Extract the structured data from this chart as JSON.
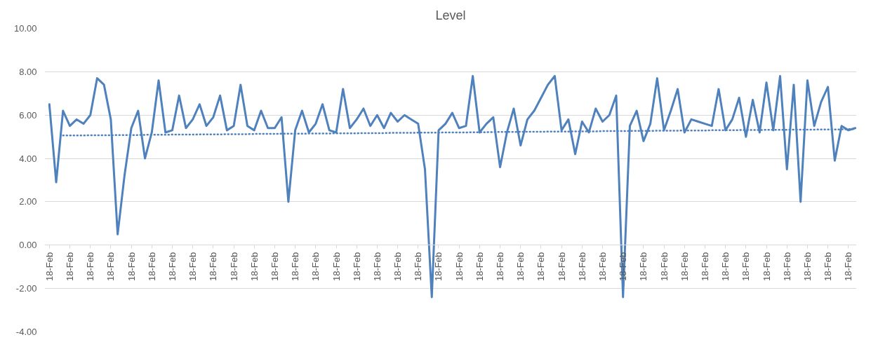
{
  "chart_data": {
    "type": "line",
    "title": "Level",
    "categories": [
      "18-Feb",
      null,
      null,
      "18-Feb",
      null,
      null,
      "18-Feb",
      null,
      null,
      "18-Feb",
      null,
      null,
      "18-Feb",
      null,
      null,
      "18-Feb",
      null,
      null,
      "18-Feb",
      null,
      null,
      "18-Feb",
      null,
      null,
      "18-Feb",
      null,
      null,
      "18-Feb",
      null,
      null,
      "18-Feb",
      null,
      null,
      "18-Feb",
      null,
      null,
      "18-Feb",
      null,
      null,
      "18-Feb",
      null,
      null,
      "18-Feb",
      null,
      null,
      "18-Feb",
      null,
      null,
      "18-Feb",
      null,
      null,
      "18-Feb",
      null,
      null,
      "18-Feb",
      null,
      null,
      "18-Feb",
      null,
      null,
      "18-Feb",
      null,
      null,
      "18-Feb",
      null,
      null,
      "18-Feb",
      null,
      null,
      "18-Feb",
      null,
      null,
      "18-Feb",
      null,
      null,
      "18-Feb",
      null,
      null,
      "18-Feb",
      null,
      null,
      "18-Feb",
      null,
      null,
      "18-Feb",
      null,
      null,
      "18-Feb",
      null,
      null,
      "18-Feb",
      null,
      null,
      "18-Feb",
      null,
      null,
      "18-Feb",
      null,
      null,
      "18-Feb",
      null,
      null,
      "18-Feb",
      null,
      null,
      "18-Feb",
      null,
      null,
      "18-Feb",
      null,
      null,
      "18-Feb",
      null,
      null,
      "18-Feb",
      null,
      null,
      "18-Feb",
      null
    ],
    "ylim": [
      -4,
      10
    ],
    "yticks": [
      {
        "value": -4,
        "label": "-4.00"
      },
      {
        "value": -2,
        "label": "-2.00"
      },
      {
        "value": 0,
        "label": "0.00"
      },
      {
        "value": 2,
        "label": "2.00"
      },
      {
        "value": 4,
        "label": "4.00"
      },
      {
        "value": 6,
        "label": "6.00"
      },
      {
        "value": 8,
        "label": "8.00"
      },
      {
        "value": 10,
        "label": "10.00"
      }
    ],
    "grid": "y",
    "line_style": "solid",
    "series": [
      {
        "color": "#4f81bd",
        "values": [
          6.5,
          2.9,
          6.2,
          5.5,
          5.8,
          5.6,
          6.0,
          7.7,
          7.4,
          5.8,
          0.5,
          3.2,
          5.4,
          6.2,
          4.0,
          5.2,
          7.6,
          5.2,
          5.3,
          6.9,
          5.4,
          5.8,
          6.5,
          5.5,
          5.9,
          6.9,
          5.3,
          5.5,
          7.4,
          5.5,
          5.3,
          6.2,
          5.4,
          5.4,
          5.9,
          2.0,
          5.3,
          6.2,
          5.2,
          5.6,
          6.5,
          5.3,
          5.2,
          7.2,
          5.4,
          5.8,
          6.3,
          5.5,
          6.0,
          5.4,
          6.1,
          5.7,
          6.0,
          5.8,
          5.6,
          3.5,
          -2.4,
          5.3,
          5.6,
          6.1,
          5.4,
          5.5,
          7.8,
          5.2,
          5.6,
          5.9,
          3.6,
          5.2,
          6.3,
          4.6,
          5.8,
          6.2,
          6.8,
          7.4,
          7.8,
          5.3,
          5.8,
          4.2,
          5.7,
          5.2,
          6.3,
          5.7,
          6.0,
          6.9,
          -2.4,
          5.5,
          6.2,
          4.8,
          5.6,
          7.7,
          5.3,
          6.2,
          7.2,
          5.2,
          5.8,
          5.7,
          5.6,
          5.5,
          7.2,
          5.3,
          5.8,
          6.8,
          5.0,
          6.7,
          5.2,
          7.5,
          5.3,
          7.8,
          3.5,
          7.4,
          2.0,
          7.6,
          5.5,
          6.6,
          7.3,
          3.9,
          5.5,
          5.3,
          5.4
        ]
      },
      {
        "type": "line",
        "line_style": "dotted",
        "color": "#4f81bd",
        "values": [
          null,
          null,
          5.06,
          5.06,
          5.06,
          5.06,
          5.07,
          5.07,
          5.07,
          5.07,
          5.08,
          5.08,
          5.08,
          5.08,
          5.09,
          5.09,
          5.09,
          5.09,
          5.1,
          5.1,
          5.1,
          5.1,
          5.11,
          5.11,
          5.11,
          5.11,
          5.12,
          5.12,
          5.12,
          5.12,
          5.13,
          5.13,
          5.13,
          5.13,
          5.14,
          5.14,
          5.14,
          5.14,
          5.15,
          5.15,
          5.15,
          5.15,
          5.16,
          5.16,
          5.16,
          5.16,
          5.17,
          5.17,
          5.17,
          5.17,
          5.18,
          5.18,
          5.18,
          5.18,
          5.19,
          5.19,
          5.19,
          5.19,
          5.2,
          5.2,
          5.2,
          5.2,
          5.21,
          5.21,
          5.21,
          5.22,
          5.22,
          5.22,
          5.22,
          5.23,
          5.23,
          5.23,
          5.23,
          5.24,
          5.24,
          5.24,
          5.24,
          5.25,
          5.25,
          5.25,
          5.25,
          5.26,
          5.26,
          5.26,
          5.26,
          5.27,
          5.27,
          5.27,
          5.27,
          5.28,
          5.28,
          5.28,
          5.28,
          5.29,
          5.29,
          5.29,
          5.29,
          5.3,
          5.3,
          5.3,
          5.3,
          5.31,
          5.31,
          5.31,
          5.31,
          5.32,
          5.32,
          5.32,
          5.32,
          5.33,
          5.33,
          5.33,
          5.33,
          5.34,
          5.34,
          5.34,
          5.34,
          5.35,
          5.35
        ]
      }
    ]
  }
}
